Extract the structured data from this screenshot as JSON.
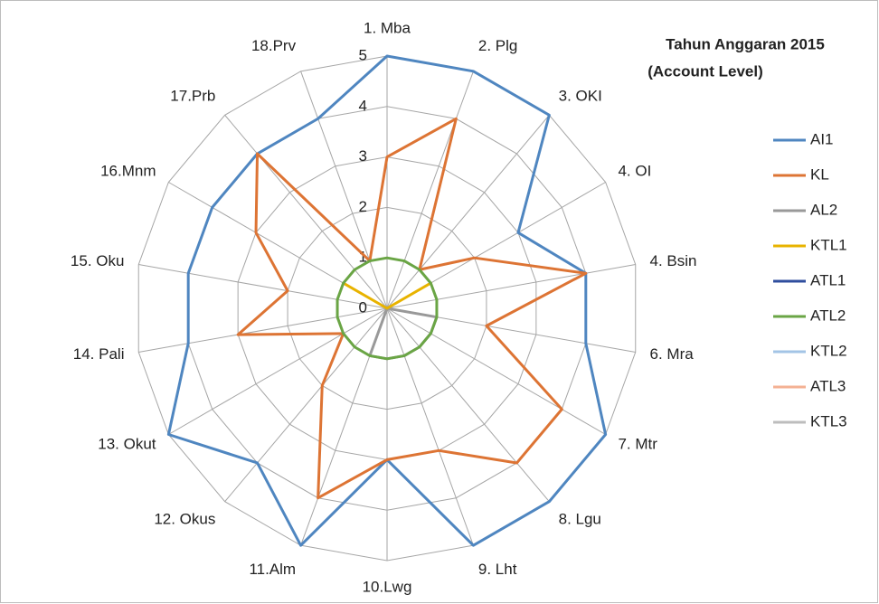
{
  "chart_data": {
    "type": "radar",
    "title": "Tahun Anggaran 2015",
    "subtitle": "(Account Level)",
    "categories": [
      "1. Mba",
      "2. Plg",
      "3. OKI",
      "4. OI",
      "4. Bsin",
      "6. Mra",
      "7. Mtr",
      "8. Lgu",
      "9. Lht",
      "10.Lwg",
      "11.Alm",
      "12. Okus",
      "13. Okut",
      "14. Pali",
      "15. Oku",
      "16.Mnm",
      "17.Prb",
      "18.Prv"
    ],
    "rlim": [
      0,
      5
    ],
    "rticks": [
      0,
      1,
      2,
      3,
      4,
      5
    ],
    "grid": true,
    "legend": "right",
    "series": [
      {
        "name": "AI1",
        "color": "#4f86c0",
        "values": [
          5,
          5,
          5,
          3,
          4,
          4,
          5,
          5,
          5,
          3,
          5,
          4,
          5,
          4,
          4,
          4,
          4,
          4
        ]
      },
      {
        "name": "KL",
        "color": "#dd7434",
        "values": [
          3,
          4,
          1,
          2,
          4,
          2,
          4,
          4,
          3,
          3,
          4,
          2,
          1,
          3,
          2,
          3,
          4,
          1
        ]
      },
      {
        "name": "AL2",
        "color": "#999999",
        "values": [
          0,
          0,
          0,
          0,
          0,
          1,
          1,
          1,
          1,
          1,
          1,
          0,
          0,
          0,
          0,
          0,
          0,
          0
        ]
      },
      {
        "name": "KTL1",
        "color": "#e8b300",
        "values": [
          0,
          0,
          0,
          1,
          0,
          0,
          0,
          0,
          0,
          0,
          0,
          0,
          0,
          0,
          0,
          1,
          0,
          0
        ]
      },
      {
        "name": "ATL1",
        "color": "#2f4e9e",
        "values": [
          0,
          0,
          0,
          0,
          0,
          0,
          0,
          0,
          0,
          0,
          0,
          0,
          0,
          0,
          0,
          0,
          0,
          0
        ]
      },
      {
        "name": "ATL2",
        "color": "#6aa545",
        "values": [
          1,
          1,
          1,
          1,
          1,
          1,
          1,
          1,
          1,
          1,
          1,
          1,
          1,
          1,
          1,
          1,
          1,
          1
        ]
      },
      {
        "name": "KTL2",
        "color": "#a3c4e6",
        "values": [
          0,
          0,
          0,
          0,
          0,
          0,
          0,
          0,
          0,
          0,
          0,
          0,
          0,
          0,
          0,
          0,
          0,
          0
        ]
      },
      {
        "name": "ATL3",
        "color": "#f4b193",
        "values": [
          0,
          0,
          0,
          0,
          0,
          0,
          0,
          0,
          0,
          0,
          0,
          0,
          0,
          0,
          0,
          0,
          0,
          0
        ]
      },
      {
        "name": "KTL3",
        "color": "#bdbdbd",
        "values": [
          0,
          0,
          0,
          0,
          0,
          0,
          0,
          0,
          0,
          0,
          0,
          0,
          0,
          0,
          0,
          0,
          0,
          0
        ]
      }
    ]
  }
}
